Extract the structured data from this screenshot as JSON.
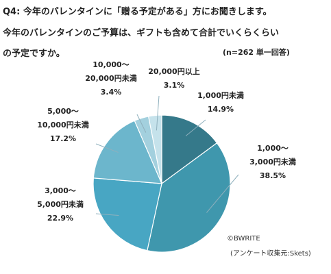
{
  "question": {
    "line1": "Q4: 今年のバレンタインに「贈る予定がある」方にお聞きします。",
    "line2": "今年のバレンタインのご予算は、ギフトも含めて合計でいくらくらい",
    "line3": "の予定ですか。",
    "note": "(n=262 単一回答)"
  },
  "credit": {
    "copyright": "©BWRITE",
    "source": "(アンケート収集元:Skets)"
  },
  "chart_data": {
    "type": "pie",
    "categories": [
      "1,000円未満",
      "1,000〜3,000円未満",
      "3,000〜5,000円未満",
      "5,000〜10,000円未満",
      "10,000〜20,000円未満",
      "20,000円以上"
    ],
    "values": [
      14.9,
      38.5,
      22.9,
      17.2,
      3.4,
      3.1
    ],
    "label_lines": [
      [
        "1,000円未満",
        "14.9%"
      ],
      [
        "1,000〜",
        "3,000円未満",
        "38.5%"
      ],
      [
        "3,000〜",
        "5,000円未満",
        "22.9%"
      ],
      [
        "5,000〜",
        "10,000円未満",
        "17.2%"
      ],
      [
        "10,000〜",
        "20,000円未満",
        "3.4%"
      ],
      [
        "20,000円以上",
        "3.1%"
      ]
    ],
    "colors": [
      "#35798a",
      "#3f97ad",
      "#48a6c3",
      "#6cb6cc",
      "#a3d0de",
      "#c5e2eb"
    ],
    "start": "12 o'clock",
    "direction": "clockwise"
  }
}
